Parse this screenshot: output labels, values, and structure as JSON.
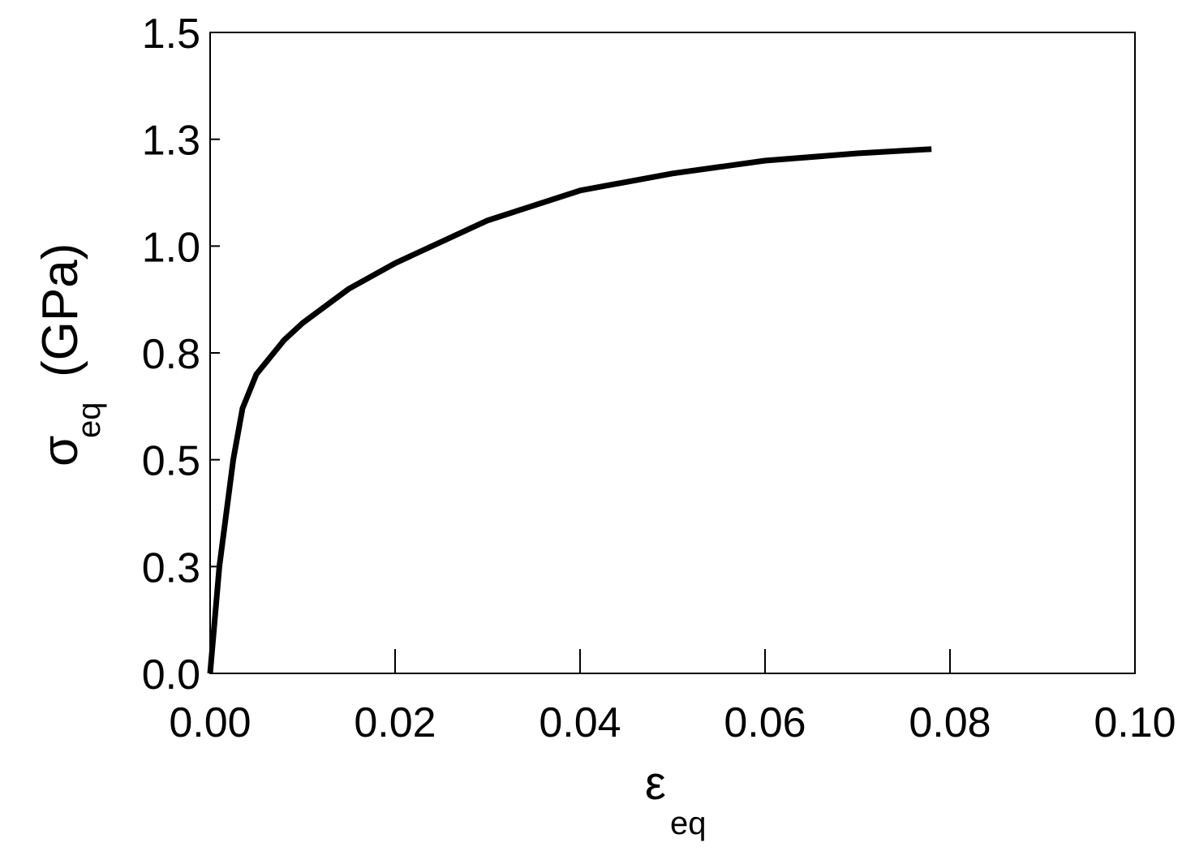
{
  "chart_data": {
    "type": "line",
    "ylabel": {
      "symbol": "σ",
      "subscript": "eq",
      "unit": "(GPa)"
    },
    "xlabel": {
      "symbol": "ε",
      "subscript": "eq"
    },
    "xlim": [
      0,
      0.1
    ],
    "xticks": [
      {
        "value": 0,
        "label": "0.00"
      },
      0.02,
      0.04,
      0.06,
      0.08,
      {
        "value": 0.1,
        "label": "0.10"
      }
    ],
    "ylim": [
      0,
      1.5
    ],
    "yticks": [
      {
        "value": 0,
        "label": "0.0"
      },
      {
        "value": 0.25,
        "label": "0.3"
      },
      0.5,
      {
        "value": 0.75,
        "label": "0.8"
      },
      {
        "value": 1,
        "label": "1.0"
      },
      {
        "value": 1.25,
        "label": "1.3"
      },
      1.5
    ],
    "grid": false,
    "series": [
      {
        "color": "#000000",
        "x": [
          0,
          0.001,
          0.0025,
          0.0035,
          0.005,
          0.008,
          0.01,
          0.015,
          0.02,
          0.03,
          0.04,
          0.05,
          0.06,
          0.07,
          0.078
        ],
        "values": [
          0,
          0.25,
          0.5,
          0.62,
          0.7,
          0.78,
          0.82,
          0.9,
          0.96,
          1.06,
          1.13,
          1.17,
          1.2,
          1.217,
          1.227
        ]
      }
    ]
  }
}
